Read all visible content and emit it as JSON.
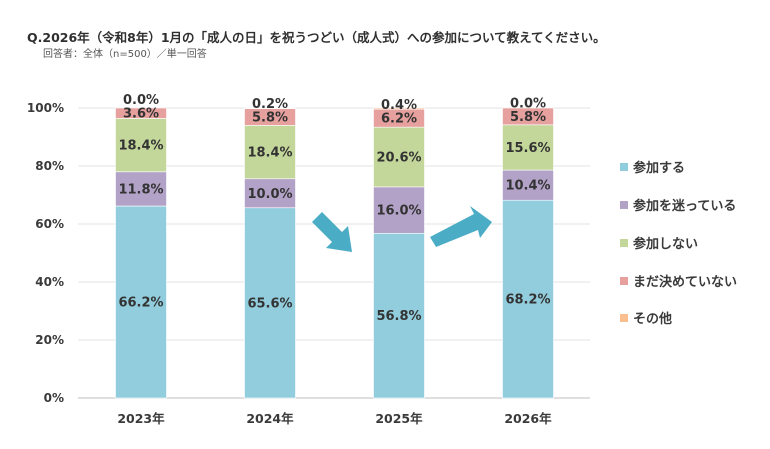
{
  "title": "Q.2026年（令和8年）1月の「成人の日」を祝うつどい（成人式）への参加について教えてください。",
  "subtitle": "回答者：全体（n=500）／単一回答",
  "chart_data": {
    "type": "bar",
    "stacked": true,
    "percent": true,
    "categories": [
      "2023年",
      "2024年",
      "2025年",
      "2026年"
    ],
    "series": [
      {
        "name": "参加する",
        "color": "#92cddd",
        "values": [
          66.2,
          65.6,
          56.8,
          68.2
        ],
        "labels": [
          "66.2%",
          "65.6%",
          "56.8%",
          "68.2%"
        ]
      },
      {
        "name": "参加を迷っている",
        "color": "#b3a2c7",
        "values": [
          11.8,
          10.0,
          16.0,
          10.4
        ],
        "labels": [
          "11.8%",
          "10.0%",
          "16.0%",
          "10.4%"
        ]
      },
      {
        "name": "参加しない",
        "color": "#c4d79b",
        "values": [
          18.4,
          18.4,
          20.6,
          15.6
        ],
        "labels": [
          "18.4%",
          "18.4%",
          "20.6%",
          "15.6%"
        ]
      },
      {
        "name": "まだ決めていない",
        "color": "#e6a09e",
        "values": [
          3.6,
          5.8,
          6.2,
          5.8
        ],
        "labels": [
          "3.6%",
          "5.8%",
          "6.2%",
          "5.8%"
        ]
      },
      {
        "name": "その他",
        "color": "#fabf8f",
        "values": [
          0.0,
          0.2,
          0.4,
          0.0
        ],
        "labels": [
          "0.0%",
          "0.2%",
          "0.4%",
          "0.0%"
        ]
      }
    ],
    "yticks": [
      "0%",
      "20%",
      "40%",
      "60%",
      "80%",
      "100%"
    ],
    "ylim": [
      0,
      100
    ],
    "legend_position": "right",
    "arrow_color": "#4bacc6"
  }
}
